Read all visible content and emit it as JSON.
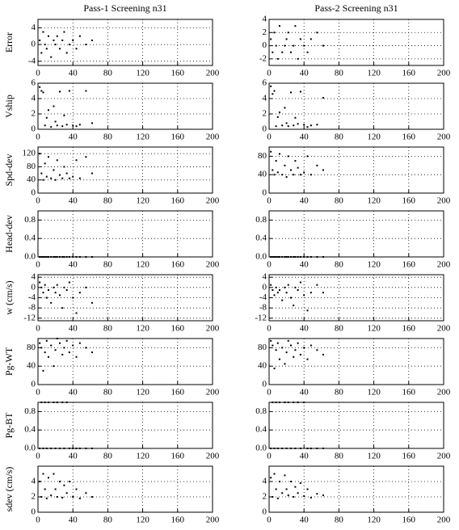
{
  "chart_data": [
    {
      "type": "scatter",
      "title": "Pass-1 Screening n31",
      "ylabel": "Error",
      "color": "#000000",
      "grid": true,
      "x": [
        2,
        4,
        6,
        8,
        10,
        12,
        15,
        18,
        20,
        22,
        25,
        28,
        30,
        33,
        36,
        40,
        44,
        48,
        55,
        62
      ],
      "values": [
        1,
        -2,
        3,
        0,
        -1,
        2,
        -3,
        1,
        0,
        2,
        -1,
        1,
        3,
        -2,
        0,
        1,
        -1,
        2,
        0,
        1
      ],
      "xlim": [
        0,
        200
      ],
      "xticks": [
        0,
        40,
        80,
        120,
        160,
        200
      ],
      "ylim": [
        -5,
        6
      ],
      "yticks": [
        -4,
        0,
        4
      ]
    },
    {
      "type": "scatter",
      "title": "Pass-2 Screening n31",
      "color": "#000000",
      "grid": true,
      "x": [
        2,
        4,
        6,
        8,
        10,
        12,
        15,
        18,
        20,
        22,
        25,
        28,
        30,
        33,
        36,
        40,
        44,
        48,
        55,
        62
      ],
      "values": [
        1,
        -1,
        2,
        0,
        -2,
        3,
        -1,
        0,
        1,
        2,
        -1,
        0,
        3,
        -2,
        1,
        0,
        -1,
        1,
        2,
        0
      ],
      "xlim": [
        0,
        200
      ],
      "xticks": [
        0,
        40,
        80,
        120,
        160,
        200
      ],
      "ylim": [
        -3,
        4
      ],
      "yticks": [
        -2,
        0,
        2,
        4
      ]
    },
    {
      "type": "scatter",
      "ylabel": "Vship",
      "color": "#000000",
      "grid": true,
      "x": [
        2,
        4,
        6,
        8,
        10,
        12,
        15,
        18,
        20,
        22,
        25,
        28,
        30,
        33,
        36,
        40,
        44,
        48,
        55,
        62
      ],
      "values": [
        5.5,
        5,
        4.8,
        0.5,
        1.5,
        2.5,
        0.3,
        3,
        1,
        0.5,
        4.9,
        0.4,
        1.8,
        0.6,
        5,
        0.5,
        0.4,
        0.6,
        5,
        0.8
      ],
      "xlim": [
        0,
        200
      ],
      "xticks": [
        0,
        40,
        80,
        120,
        160,
        200
      ],
      "ylim": [
        0,
        6
      ],
      "yticks": [
        0,
        2,
        4,
        6
      ]
    },
    {
      "type": "scatter",
      "color": "#000000",
      "grid": true,
      "x": [
        2,
        4,
        6,
        8,
        10,
        12,
        15,
        18,
        20,
        22,
        25,
        28,
        30,
        33,
        36,
        40,
        44,
        48,
        55,
        62
      ],
      "values": [
        5.6,
        4.6,
        5,
        0.4,
        1.6,
        2.2,
        0.5,
        2.8,
        0.8,
        0.4,
        4.8,
        0.5,
        1.5,
        0.7,
        4.9,
        0.6,
        0.3,
        0.5,
        0.6,
        4.1
      ],
      "xlim": [
        0,
        200
      ],
      "xticks": [
        0,
        40,
        80,
        120,
        160,
        200
      ],
      "ylim": [
        0,
        6
      ],
      "yticks": [
        0,
        2,
        4,
        6
      ]
    },
    {
      "type": "scatter",
      "ylabel": "Spd-dev",
      "color": "#000000",
      "grid": true,
      "x": [
        2,
        4,
        6,
        8,
        10,
        12,
        15,
        18,
        20,
        22,
        25,
        28,
        30,
        33,
        36,
        40,
        44,
        48,
        55,
        62
      ],
      "values": [
        120,
        60,
        40,
        90,
        50,
        110,
        45,
        70,
        40,
        100,
        55,
        45,
        80,
        60,
        45,
        50,
        100,
        45,
        110,
        60
      ],
      "xlim": [
        0,
        200
      ],
      "xticks": [
        0,
        40,
        80,
        120,
        160,
        200
      ],
      "ylim": [
        0,
        140
      ],
      "yticks": [
        0,
        40,
        80,
        120
      ]
    },
    {
      "type": "scatter",
      "color": "#000000",
      "grid": true,
      "x": [
        2,
        4,
        6,
        8,
        10,
        12,
        15,
        18,
        20,
        22,
        25,
        28,
        30,
        33,
        36,
        40,
        44,
        48,
        55,
        62
      ],
      "values": [
        90,
        50,
        40,
        70,
        45,
        85,
        40,
        60,
        35,
        80,
        50,
        40,
        70,
        55,
        40,
        45,
        80,
        40,
        60,
        50
      ],
      "xlim": [
        0,
        200
      ],
      "xticks": [
        0,
        40,
        80,
        120,
        160,
        200
      ],
      "ylim": [
        0,
        100
      ],
      "yticks": [
        0,
        40,
        80
      ]
    },
    {
      "type": "scatter",
      "ylabel": "Head-dev",
      "color": "#000000",
      "grid": true,
      "x": [
        2,
        4,
        6,
        8,
        10,
        12,
        15,
        18,
        20,
        22,
        25,
        28,
        30,
        33,
        36,
        40,
        44,
        48,
        55,
        62
      ],
      "values": [
        0,
        0,
        0,
        0,
        0,
        0,
        0,
        0,
        0,
        0,
        0,
        0,
        0,
        0,
        0,
        0,
        0,
        0,
        0,
        0
      ],
      "xlim": [
        0,
        200
      ],
      "xticks": [
        0,
        40,
        80,
        120,
        160,
        200
      ],
      "ylim": [
        0,
        1
      ],
      "yticks": [
        {
          "value": 0,
          "label": "0.0"
        },
        0.4,
        0.8
      ]
    },
    {
      "type": "scatter",
      "color": "#000000",
      "grid": true,
      "x": [
        2,
        4,
        6,
        8,
        10,
        12,
        15,
        18,
        20,
        22,
        25,
        28,
        30,
        33,
        36,
        40,
        44,
        48,
        55,
        62
      ],
      "values": [
        0,
        0,
        0,
        0,
        0,
        0,
        0,
        0,
        0,
        0,
        0,
        0,
        0,
        0,
        0,
        0,
        0,
        0,
        0,
        0
      ],
      "xlim": [
        0,
        200
      ],
      "xticks": [
        0,
        40,
        80,
        120,
        160,
        200
      ],
      "ylim": [
        0,
        1
      ],
      "yticks": [
        {
          "value": 0,
          "label": "0.0"
        },
        0.4,
        0.8
      ]
    },
    {
      "type": "scatter",
      "ylabel": "w (cm/s)",
      "color": "#000000",
      "grid": true,
      "x": [
        2,
        4,
        6,
        8,
        10,
        12,
        15,
        18,
        20,
        22,
        25,
        28,
        30,
        33,
        36,
        40,
        44,
        48,
        55,
        62
      ],
      "values": [
        2,
        0,
        -2,
        1,
        -4,
        -1,
        -6,
        0,
        -2,
        1,
        -3,
        -8,
        0,
        -1,
        2,
        -4,
        -10,
        -2,
        0,
        -6
      ],
      "xlim": [
        0,
        200
      ],
      "xticks": [
        0,
        40,
        80,
        120,
        160,
        200
      ],
      "ylim": [
        -13,
        5
      ],
      "yticks": [
        -12,
        -8,
        -4,
        0,
        4
      ]
    },
    {
      "type": "scatter",
      "color": "#000000",
      "grid": true,
      "x": [
        2,
        4,
        6,
        8,
        10,
        12,
        15,
        18,
        20,
        22,
        25,
        28,
        30,
        33,
        36,
        40,
        44,
        48,
        55,
        62
      ],
      "values": [
        1,
        -1,
        -3,
        0,
        -2,
        -1,
        -5,
        0,
        -2,
        1,
        -4,
        -7,
        0,
        -1,
        2,
        -3,
        -9,
        -2,
        1,
        -2
      ],
      "xlim": [
        0,
        200
      ],
      "xticks": [
        0,
        40,
        80,
        120,
        160,
        200
      ],
      "ylim": [
        -13,
        5
      ],
      "yticks": [
        -12,
        -8,
        -4,
        0,
        4
      ]
    },
    {
      "type": "scatter",
      "ylabel": "Pg-WT",
      "color": "#000000",
      "grid": true,
      "x": [
        2,
        4,
        6,
        8,
        10,
        12,
        15,
        18,
        20,
        22,
        25,
        28,
        30,
        33,
        36,
        40,
        44,
        48,
        55,
        62
      ],
      "values": [
        90,
        80,
        30,
        70,
        95,
        60,
        85,
        40,
        75,
        100,
        90,
        65,
        80,
        95,
        70,
        85,
        60,
        90,
        80,
        70
      ],
      "xlim": [
        0,
        200
      ],
      "xticks": [
        0,
        40,
        80,
        120,
        160,
        200
      ],
      "ylim": [
        0,
        100
      ],
      "yticks": [
        0,
        40,
        80
      ]
    },
    {
      "type": "scatter",
      "color": "#000000",
      "grid": true,
      "x": [
        2,
        4,
        6,
        8,
        10,
        12,
        15,
        18,
        20,
        22,
        25,
        28,
        30,
        33,
        36,
        40,
        44,
        48,
        55,
        62
      ],
      "values": [
        95,
        85,
        35,
        75,
        90,
        55,
        80,
        45,
        70,
        95,
        85,
        60,
        75,
        90,
        65,
        80,
        55,
        85,
        75,
        65
      ],
      "xlim": [
        0,
        200
      ],
      "xticks": [
        0,
        40,
        80,
        120,
        160,
        200
      ],
      "ylim": [
        0,
        100
      ],
      "yticks": [
        0,
        40,
        80
      ]
    },
    {
      "type": "scatter",
      "ylabel": "Pg-BT",
      "color": "#000000",
      "grid": true,
      "x": [
        2,
        4,
        6,
        8,
        10,
        12,
        15,
        18,
        20,
        22,
        25,
        28,
        30,
        33,
        36,
        40,
        44,
        48,
        55,
        62
      ],
      "values": [
        0,
        1,
        0,
        1,
        0,
        1,
        0,
        1,
        0,
        1,
        0,
        1,
        0,
        1,
        0,
        0,
        0,
        0,
        0,
        0
      ],
      "xlim": [
        0,
        200
      ],
      "xticks": [
        0,
        40,
        80,
        120,
        160,
        200
      ],
      "ylim": [
        0,
        1
      ],
      "yticks": [
        {
          "value": 0,
          "label": "0.0"
        },
        0.4,
        0.8
      ]
    },
    {
      "type": "scatter",
      "color": "#000000",
      "grid": true,
      "x": [
        2,
        4,
        6,
        8,
        10,
        12,
        15,
        18,
        20,
        22,
        25,
        28,
        30,
        33,
        36,
        40,
        44,
        48,
        55,
        62
      ],
      "values": [
        0,
        1,
        0,
        1,
        0,
        1,
        0,
        1,
        0,
        1,
        0,
        1,
        0,
        1,
        0,
        1,
        0,
        0,
        0,
        0
      ],
      "xlim": [
        0,
        200
      ],
      "xticks": [
        0,
        40,
        80,
        120,
        160,
        200
      ],
      "ylim": [
        0,
        1
      ],
      "yticks": [
        {
          "value": 0,
          "label": "0.0"
        },
        0.4,
        0.8
      ]
    },
    {
      "type": "scatter",
      "ylabel": "sdev (cm/s)",
      "color": "#000000",
      "grid": true,
      "x": [
        2,
        4,
        6,
        8,
        10,
        12,
        15,
        18,
        20,
        22,
        25,
        28,
        30,
        33,
        36,
        40,
        44,
        48,
        55,
        62
      ],
      "values": [
        4,
        2,
        5,
        3,
        1.8,
        4.5,
        2.2,
        5,
        3,
        2,
        4,
        1.9,
        3.5,
        2.5,
        4,
        2,
        3,
        1.8,
        2.5,
        2
      ],
      "xlim": [
        0,
        200
      ],
      "xticks": [
        0,
        40,
        80,
        120,
        160,
        200
      ],
      "ylim": [
        0,
        6
      ],
      "yticks": [
        0,
        2,
        4
      ]
    },
    {
      "type": "scatter",
      "color": "#000000",
      "grid": true,
      "x": [
        2,
        4,
        6,
        8,
        10,
        12,
        15,
        18,
        20,
        22,
        25,
        28,
        30,
        33,
        36,
        40,
        44,
        48,
        55,
        62
      ],
      "values": [
        4.5,
        2,
        5,
        3,
        1.8,
        4,
        2.5,
        4.8,
        3,
        2.2,
        4,
        2,
        3.3,
        2.5,
        3.8,
        2.1,
        3,
        1.9,
        2.4,
        2.2
      ],
      "xlim": [
        0,
        200
      ],
      "xticks": [
        0,
        40,
        80,
        120,
        160,
        200
      ],
      "ylim": [
        0,
        6
      ],
      "yticks": [
        0,
        2,
        4
      ]
    }
  ]
}
